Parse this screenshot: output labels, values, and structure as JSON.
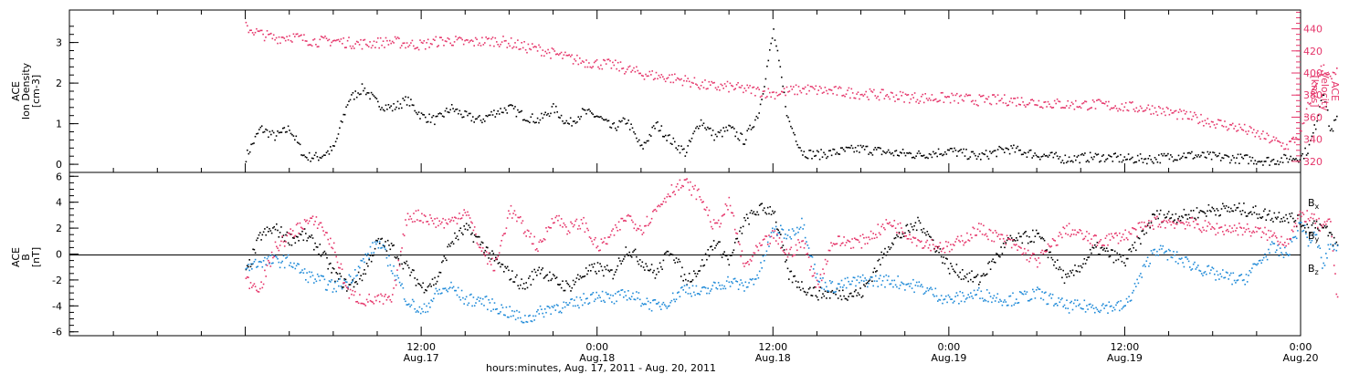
{
  "colors": {
    "density": "#000000",
    "velocity": "#e5356a",
    "bx": "#000000",
    "by": "#1f8ad8",
    "bz": "#e5356a"
  },
  "xaxis": {
    "title": "hours:minutes, Aug. 17, 2011 - Aug. 20, 2011",
    "range_hours": [
      -12,
      72
    ],
    "ticks": [
      {
        "t": 12,
        "time": "12:00",
        "date": "Aug.17"
      },
      {
        "t": 24,
        "time": "0:00",
        "date": "Aug.18"
      },
      {
        "t": 36,
        "time": "12:00",
        "date": "Aug.18"
      },
      {
        "t": 48,
        "time": "0:00",
        "date": "Aug.19"
      },
      {
        "t": 60,
        "time": "12:00",
        "date": "Aug.19"
      },
      {
        "t": 72,
        "time": "0:00",
        "date": "Aug.20"
      }
    ]
  },
  "chart_data": [
    {
      "type": "scatter",
      "panel": "top",
      "ylabel_left": [
        "ACE",
        "Ion Density",
        "[cm-3]"
      ],
      "ylabel_right": [
        "ACE",
        "Velocity",
        "[km/s]"
      ],
      "ylim": [
        -0.2,
        3.8
      ],
      "y2lim": [
        310,
        457
      ],
      "yticks": [
        0,
        1,
        2,
        3
      ],
      "y2ticks": [
        320,
        340,
        360,
        380,
        400,
        420,
        440
      ],
      "series": [
        {
          "name": "",
          "axis": "left",
          "x": [
            0.0,
            1.0,
            2.0,
            3.0,
            4.0,
            5.0,
            6.0,
            7.0,
            8.0,
            9.0,
            10.0,
            11.0,
            12.0,
            13.0,
            14.0,
            15.0,
            16.0,
            17.0,
            18.0,
            19.0,
            20.0,
            21.0,
            22.0,
            23.0,
            24.0,
            25.0,
            26.0,
            27.0,
            28.0,
            29.0,
            30.0,
            31.0,
            32.0,
            33.0,
            34.0,
            35.0,
            36.0,
            37.0,
            38.0,
            39.0,
            40.0,
            42.0,
            44.0,
            46.0,
            48.0,
            50.0,
            52.0,
            54.0,
            56.0,
            58.0,
            60.0,
            62.0,
            64.0,
            66.0,
            68.0,
            70.0,
            71.0,
            72.0,
            72.5,
            73.0,
            73.5,
            74.0,
            74.5
          ],
          "values": [
            0.2,
            0.9,
            0.7,
            0.9,
            0.2,
            0.2,
            0.4,
            1.6,
            1.9,
            1.5,
            1.4,
            1.6,
            1.2,
            1.1,
            1.4,
            1.2,
            1.1,
            1.3,
            1.4,
            1.2,
            1.1,
            1.4,
            1.0,
            1.3,
            1.2,
            0.9,
            1.1,
            0.4,
            1.0,
            0.6,
            0.3,
            1.1,
            0.7,
            0.9,
            0.6,
            1.3,
            3.3,
            1.1,
            0.3,
            0.25,
            0.3,
            0.4,
            0.3,
            0.25,
            0.35,
            0.2,
            0.4,
            0.25,
            0.15,
            0.2,
            0.15,
            0.15,
            0.25,
            0.2,
            0.15,
            0.1,
            0.15,
            0.2,
            0.4,
            1.0,
            1.9,
            0.8,
            1.2
          ]
        },
        {
          "name": "",
          "axis": "right",
          "x": [
            0.0,
            1.0,
            2.0,
            3.0,
            4.0,
            5.0,
            6.0,
            7.0,
            8.0,
            9.0,
            10.0,
            11.0,
            12.0,
            13.0,
            14.0,
            15.0,
            16.0,
            17.0,
            18.0,
            19.0,
            20.0,
            21.0,
            22.0,
            23.0,
            24.0,
            25.0,
            26.0,
            27.0,
            28.0,
            29.0,
            30.0,
            31.0,
            32.0,
            33.0,
            34.0,
            35.0,
            36.0,
            37.0,
            38.0,
            39.0,
            40.0,
            42.0,
            44.0,
            46.0,
            48.0,
            50.0,
            52.0,
            54.0,
            56.0,
            58.0,
            60.0,
            62.0,
            64.0,
            66.0,
            68.0,
            70.0,
            71.0,
            72.0,
            72.5,
            73.0,
            73.5,
            74.0,
            74.5
          ],
          "values": [
            442,
            436,
            432,
            434,
            431,
            429,
            430,
            428,
            427,
            428,
            429,
            427,
            426,
            429,
            430,
            428,
            429,
            430,
            428,
            424,
            422,
            418,
            414,
            411,
            409,
            408,
            404,
            400,
            398,
            396,
            394,
            390,
            388,
            388,
            386,
            384,
            382,
            384,
            386,
            385,
            384,
            382,
            380,
            378,
            378,
            376,
            376,
            374,
            372,
            372,
            370,
            368,
            362,
            356,
            350,
            340,
            334,
            346,
            372,
            392,
            408,
            394,
            404
          ]
        }
      ]
    },
    {
      "type": "scatter",
      "panel": "bottom",
      "ylabel_left": [
        "ACE",
        "B",
        "[nT]"
      ],
      "ylim": [
        -6.3,
        6.3
      ],
      "yticks": [
        -6,
        -4,
        -2,
        0,
        2,
        4,
        6
      ],
      "legend_position": "right",
      "series": [
        {
          "name": "Bx",
          "x": [
            0.0,
            1.0,
            2.0,
            3.0,
            4.0,
            5.0,
            6.0,
            7.0,
            8.0,
            9.0,
            10.0,
            11.0,
            12.0,
            13.0,
            14.0,
            15.0,
            16.0,
            17.0,
            18.0,
            19.0,
            20.0,
            21.0,
            22.0,
            23.0,
            24.0,
            25.0,
            26.0,
            27.0,
            28.0,
            29.0,
            30.0,
            31.0,
            32.0,
            33.0,
            34.0,
            35.0,
            36.0,
            37.0,
            38.0,
            39.0,
            40.0,
            42.0,
            44.0,
            46.0,
            48.0,
            50.0,
            52.0,
            54.0,
            56.0,
            58.0,
            60.0,
            62.0,
            64.0,
            66.0,
            68.0,
            70.0,
            71.0,
            72.0,
            72.5,
            73.0,
            73.5,
            74.0,
            74.5
          ],
          "values": [
            -1.5,
            1.5,
            2.0,
            1.2,
            1.5,
            0.5,
            -1.5,
            -2.5,
            -1.5,
            1.0,
            0.5,
            -1.0,
            -2.5,
            -2.0,
            1.0,
            2.0,
            1.0,
            -0.5,
            -1.5,
            -2.5,
            -1.0,
            -2.0,
            -2.5,
            -1.5,
            -1.0,
            -1.5,
            0.5,
            -0.5,
            -1.5,
            0.5,
            -2.0,
            -1.0,
            1.0,
            -0.5,
            2.5,
            3.5,
            3.5,
            -1.5,
            -2.5,
            -3.0,
            -3.0,
            -3.0,
            1.0,
            2.5,
            -1.0,
            -2.0,
            1.0,
            1.5,
            -2.0,
            0.5,
            -0.5,
            3.0,
            3.0,
            3.5,
            3.5,
            3.0,
            3.0,
            2.5,
            2.0,
            2.5,
            2.0,
            1.5,
            0.5
          ]
        },
        {
          "name": "By",
          "x": [
            0.0,
            1.0,
            2.0,
            3.0,
            4.0,
            5.0,
            6.0,
            7.0,
            8.0,
            9.0,
            10.0,
            11.0,
            12.0,
            13.0,
            14.0,
            15.0,
            16.0,
            17.0,
            18.0,
            19.0,
            20.0,
            21.0,
            22.0,
            23.0,
            24.0,
            25.0,
            26.0,
            27.0,
            28.0,
            29.0,
            30.0,
            31.0,
            32.0,
            33.0,
            34.0,
            35.0,
            36.0,
            37.0,
            38.0,
            39.0,
            40.0,
            42.0,
            44.0,
            46.0,
            48.0,
            50.0,
            52.0,
            54.0,
            56.0,
            58.0,
            60.0,
            62.0,
            64.0,
            66.0,
            68.0,
            70.0,
            71.0,
            72.0,
            72.5,
            73.0,
            73.5,
            74.0,
            74.5
          ],
          "values": [
            -1.0,
            -0.5,
            -0.5,
            -0.5,
            -1.5,
            -2.0,
            -2.5,
            -2.0,
            -0.5,
            1.0,
            -1.0,
            -3.5,
            -4.5,
            -3.0,
            -2.5,
            -3.5,
            -3.5,
            -4.0,
            -4.5,
            -5.0,
            -4.5,
            -4.0,
            -4.0,
            -3.5,
            -3.0,
            -3.5,
            -3.0,
            -3.5,
            -4.0,
            -3.5,
            -2.5,
            -3.0,
            -2.5,
            -2.0,
            -2.5,
            -1.5,
            2.0,
            1.5,
            2.5,
            -2.0,
            -2.5,
            -2.0,
            -2.0,
            -2.5,
            -3.5,
            -3.0,
            -3.5,
            -3.0,
            -4.0,
            -4.0,
            -4.0,
            0.5,
            -0.5,
            -1.5,
            -2.0,
            0.5,
            0.0,
            2.5,
            1.0,
            1.5,
            -1.0,
            1.0,
            0.5
          ]
        },
        {
          "name": "Bz",
          "x": [
            0.0,
            1.0,
            2.0,
            3.0,
            4.0,
            5.0,
            6.0,
            7.0,
            8.0,
            9.0,
            10.0,
            11.0,
            12.0,
            13.0,
            14.0,
            15.0,
            16.0,
            17.0,
            18.0,
            19.0,
            20.0,
            21.0,
            22.0,
            23.0,
            24.0,
            25.0,
            26.0,
            27.0,
            28.0,
            29.0,
            30.0,
            31.0,
            32.0,
            33.0,
            34.0,
            35.0,
            36.0,
            37.0,
            38.0,
            39.0,
            40.0,
            42.0,
            44.0,
            46.0,
            48.0,
            50.0,
            52.0,
            54.0,
            56.0,
            58.0,
            60.0,
            62.0,
            64.0,
            66.0,
            68.0,
            70.0,
            71.0,
            72.0,
            72.5,
            73.0,
            73.5,
            74.0,
            74.5
          ],
          "values": [
            -2.0,
            -2.5,
            0.5,
            1.5,
            2.5,
            2.5,
            0.5,
            -3.0,
            -3.5,
            -3.5,
            -3.5,
            3.0,
            3.0,
            2.5,
            2.5,
            3.5,
            0.5,
            -1.0,
            3.5,
            2.0,
            0.5,
            3.0,
            2.0,
            2.5,
            0.5,
            1.5,
            3.0,
            2.0,
            3.5,
            5.0,
            5.5,
            4.5,
            2.0,
            4.0,
            -1.0,
            0.5,
            1.5,
            0.0,
            1.0,
            -2.5,
            1.0,
            1.0,
            2.5,
            1.0,
            0.5,
            2.0,
            1.0,
            -0.5,
            2.0,
            1.0,
            1.5,
            2.5,
            2.5,
            2.0,
            2.0,
            1.5,
            1.0,
            3.0,
            3.0,
            2.5,
            2.0,
            2.5,
            -4.0
          ]
        }
      ]
    }
  ]
}
